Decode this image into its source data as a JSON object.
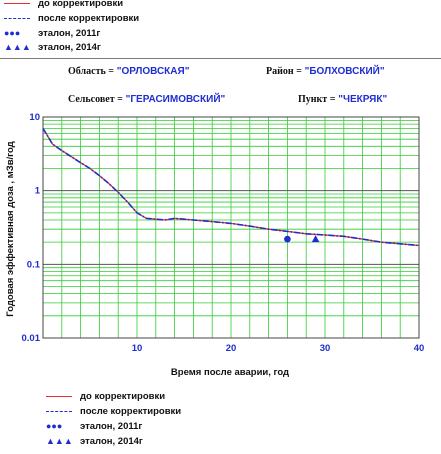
{
  "header": {
    "oblast_label": "Область =",
    "oblast_value": "\"ОРЛОВСКАЯ\"",
    "rayon_label": "Район =",
    "rayon_value": "\"БОЛХОВСКИЙ\"",
    "selsovet_label": "Сельсовет =",
    "selsovet_value": "\"ГЕРАСИМОВСКИЙ\"",
    "punkt_label": "Пункт =",
    "punkt_value": "\"ЧЕКРЯК\""
  },
  "legend": {
    "before": "до корректировки",
    "after": "после корректировки",
    "etalon_2011": "эталон,  2011г",
    "etalon_2014": "эталон,  2014г",
    "dots_symbol": "●●●",
    "triangles_symbol": "▲▲▲"
  },
  "colors": {
    "before": "#e53030",
    "after": "#1f2ed0",
    "grid_minor": "#33cc33",
    "grid_major": "#555555",
    "axis_labels": "#1f2ed0"
  },
  "chart_data": {
    "type": "line",
    "xlabel": "Время после аварии, год",
    "ylabel": "Годовая эффективная доза , мЗв/год",
    "xlim": [
      0,
      40
    ],
    "ylim": [
      0.01,
      10
    ],
    "yscale": "log",
    "xticks": [
      "10",
      "20",
      "30",
      "40"
    ],
    "yticks": [
      "0.01",
      "0.1",
      "1",
      "10"
    ],
    "grid": true,
    "series": [
      {
        "name": "до корректировки",
        "x": [
          0,
          0.5,
          1,
          2,
          3,
          4,
          5,
          6,
          7,
          8,
          9,
          10,
          11,
          12,
          13,
          14,
          16,
          18,
          20,
          22,
          24,
          26,
          28,
          30,
          32,
          34,
          36,
          38,
          40
        ],
        "y": [
          7.0,
          5.5,
          4.3,
          3.5,
          2.9,
          2.4,
          2.0,
          1.6,
          1.25,
          0.95,
          0.7,
          0.5,
          0.42,
          0.41,
          0.4,
          0.42,
          0.4,
          0.38,
          0.36,
          0.33,
          0.3,
          0.28,
          0.26,
          0.25,
          0.24,
          0.22,
          0.2,
          0.19,
          0.18
        ]
      },
      {
        "name": "после корректировки",
        "x": [
          0,
          0.5,
          1,
          2,
          3,
          4,
          5,
          6,
          7,
          8,
          9,
          10,
          11,
          12,
          13,
          14,
          16,
          18,
          20,
          22,
          24,
          26,
          28,
          30,
          32,
          34,
          36,
          38,
          40
        ],
        "y": [
          7.0,
          5.5,
          4.3,
          3.5,
          2.9,
          2.4,
          2.0,
          1.6,
          1.25,
          0.95,
          0.7,
          0.5,
          0.42,
          0.41,
          0.4,
          0.42,
          0.4,
          0.38,
          0.36,
          0.33,
          0.3,
          0.28,
          0.26,
          0.25,
          0.24,
          0.22,
          0.2,
          0.19,
          0.18
        ]
      },
      {
        "name": "эталон,  2011г",
        "marker": "circle",
        "x": [
          26
        ],
        "y": [
          0.22
        ]
      },
      {
        "name": "эталон,  2014г",
        "marker": "triangle",
        "x": [
          29
        ],
        "y": [
          0.22
        ]
      }
    ]
  }
}
